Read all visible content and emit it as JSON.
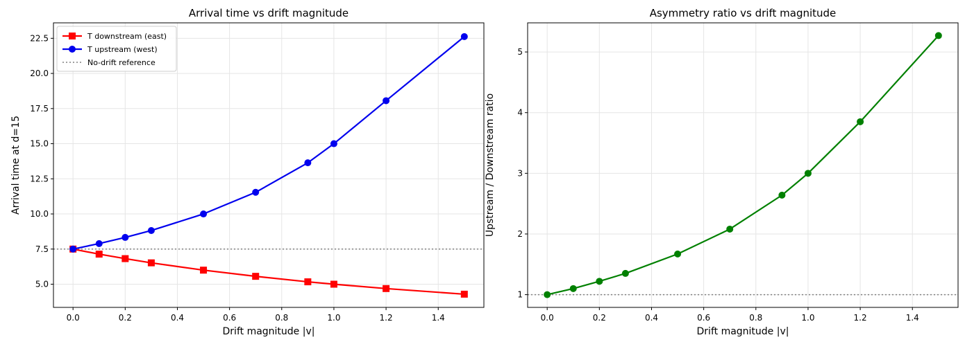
{
  "chart_data": [
    {
      "type": "line",
      "title": "Arrival time vs drift magnitude",
      "xlabel": "Drift magnitude |v|",
      "ylabel": "Arrival time at d=15",
      "xlim": [
        -0.075,
        1.575
      ],
      "ylim": [
        3.35,
        23.6
      ],
      "xticks": [
        0.0,
        0.2,
        0.4,
        0.6,
        0.8,
        1.0,
        1.2,
        1.4
      ],
      "xtick_labels": [
        "0.0",
        "0.2",
        "0.4",
        "0.6",
        "0.8",
        "1.0",
        "1.2",
        "1.4"
      ],
      "yticks": [
        5.0,
        7.5,
        10.0,
        12.5,
        15.0,
        17.5,
        20.0,
        22.5
      ],
      "ytick_labels": [
        "5.0",
        "7.5",
        "10.0",
        "12.5",
        "15.0",
        "17.5",
        "20.0",
        "22.5"
      ],
      "grid": true,
      "legend_position": "top-left",
      "x": [
        0.0,
        0.1,
        0.2,
        0.3,
        0.5,
        0.7,
        0.9,
        1.0,
        1.2,
        1.5
      ],
      "series": [
        {
          "name": "T downstream (east)",
          "color": "#ff0000",
          "marker": "square",
          "values": [
            7.5,
            7.14,
            6.82,
            6.52,
            6.0,
            5.56,
            5.17,
            5.0,
            4.69,
            4.29
          ]
        },
        {
          "name": "T upstream (west)",
          "color": "#0000ee",
          "marker": "circle",
          "values": [
            7.5,
            7.89,
            8.33,
            8.82,
            10.0,
            11.54,
            13.64,
            15.0,
            18.06,
            22.62
          ]
        }
      ],
      "reference_line": {
        "name": "No-drift reference",
        "value": 7.5,
        "color": "#808080"
      }
    },
    {
      "type": "line",
      "title": "Asymmetry ratio vs drift magnitude",
      "xlabel": "Drift magnitude |v|",
      "ylabel": "Upstream / Downstream ratio",
      "xlim": [
        -0.075,
        1.575
      ],
      "ylim": [
        0.79,
        5.48
      ],
      "xticks": [
        0.0,
        0.2,
        0.4,
        0.6,
        0.8,
        1.0,
        1.2,
        1.4
      ],
      "xtick_labels": [
        "0.0",
        "0.2",
        "0.4",
        "0.6",
        "0.8",
        "1.0",
        "1.2",
        "1.4"
      ],
      "yticks": [
        1,
        2,
        3,
        4,
        5
      ],
      "ytick_labels": [
        "1",
        "2",
        "3",
        "4",
        "5"
      ],
      "grid": true,
      "x": [
        0.0,
        0.1,
        0.2,
        0.3,
        0.5,
        0.7,
        0.9,
        1.0,
        1.2,
        1.5
      ],
      "series": [
        {
          "color": "#008000",
          "marker": "circle",
          "values": [
            1.0,
            1.1,
            1.22,
            1.35,
            1.67,
            2.08,
            2.64,
            3.0,
            3.85,
            5.27
          ]
        }
      ],
      "reference_line": {
        "value": 1,
        "color": "#808080"
      }
    }
  ]
}
